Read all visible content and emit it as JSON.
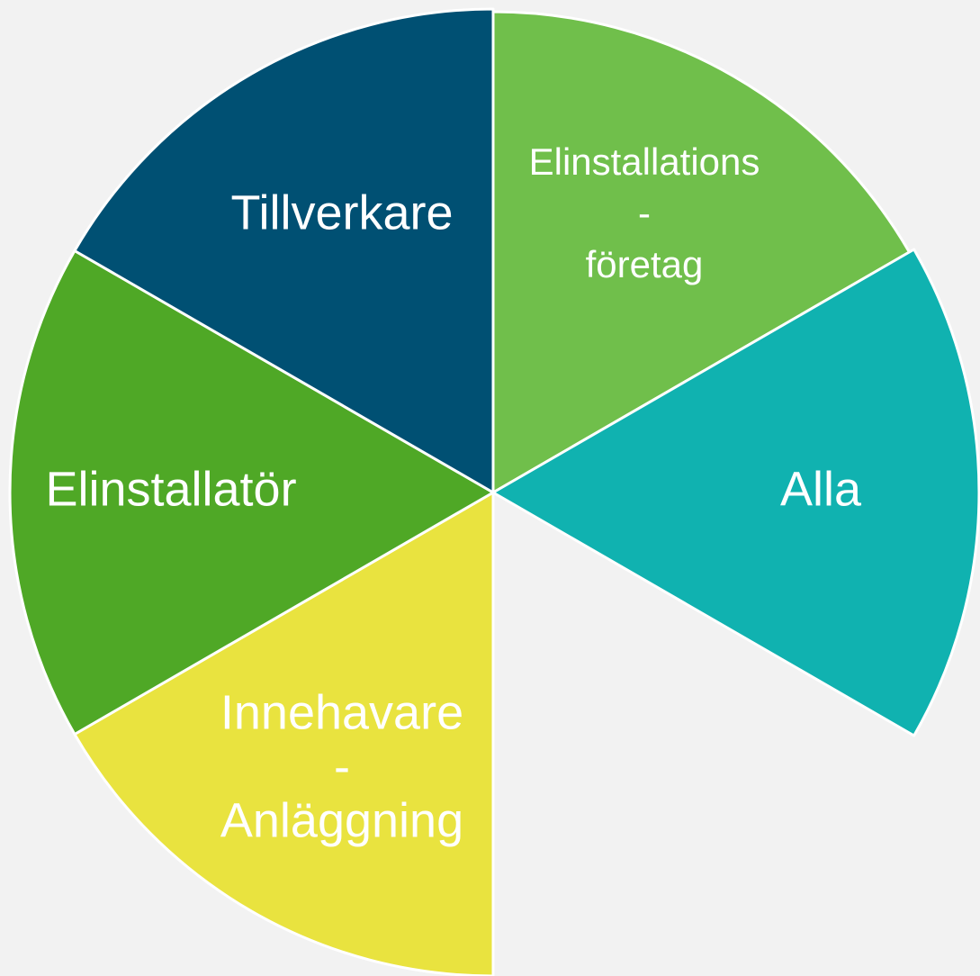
{
  "nodes": [
    {
      "lines": [
        "Elinstallations",
        "-",
        "företag"
      ],
      "color": "#70bf4b"
    },
    {
      "lines": [
        "Alla"
      ],
      "color": "#10b2b0"
    },
    {
      "lines": [
        "Innehavare",
        "-",
        "Anläggning"
      ],
      "color": "#e9e33f"
    },
    {
      "lines": [
        "Elinstallatör"
      ],
      "color": "#4fa826"
    },
    {
      "lines": [
        "Tillverkare"
      ],
      "color": "#005073"
    }
  ]
}
